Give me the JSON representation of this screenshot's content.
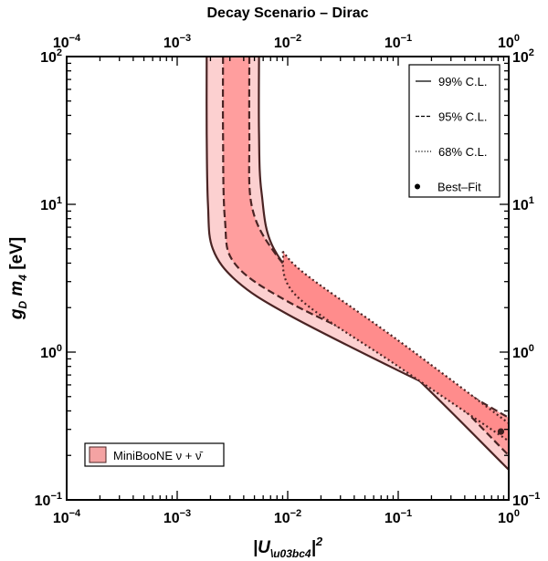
{
  "chart_data": {
    "type": "contour",
    "title": "Decay Scenario – Dirac",
    "xlabel": "|Uμ4|²",
    "ylabel": "gD m4 [eV]",
    "xscale": "log",
    "yscale": "log",
    "xlim": [
      0.0001,
      1
    ],
    "ylim": [
      0.1,
      100
    ],
    "x_ticks": [
      {
        "value": 0.0001,
        "base": "10",
        "exp": "−4"
      },
      {
        "value": 0.001,
        "base": "10",
        "exp": "−3"
      },
      {
        "value": 0.01,
        "base": "10",
        "exp": "−2"
      },
      {
        "value": 0.1,
        "base": "10",
        "exp": "−1"
      },
      {
        "value": 1,
        "base": "10",
        "exp": "0"
      }
    ],
    "y_ticks": [
      {
        "value": 0.1,
        "base": "10",
        "exp": "−1"
      },
      {
        "value": 1,
        "base": "10",
        "exp": "0"
      },
      {
        "value": 10,
        "base": "10",
        "exp": "1"
      },
      {
        "value": 100,
        "base": "10",
        "exp": "2"
      }
    ],
    "legend": {
      "placement": "top-right",
      "entries": [
        {
          "label": "99% C.L.",
          "style": "solid"
        },
        {
          "label": "95% C.L.",
          "style": "dashed"
        },
        {
          "label": "68% C.L.",
          "style": "dotted"
        },
        {
          "label": "Best–Fit",
          "style": "point"
        }
      ]
    },
    "dataset_legend": {
      "placement": "bottom-left",
      "label": "MiniBooNE ν + ν̄",
      "color": "#f4a3a3"
    },
    "regions": [
      {
        "level": "99% C.L.",
        "fill": "#fcd0d0",
        "upper": [
          [
            0.00185,
            100
          ],
          [
            0.00185,
            30
          ],
          [
            0.0019,
            10
          ],
          [
            0.0021,
            5
          ],
          [
            0.0035,
            3
          ],
          [
            0.01,
            1.8
          ],
          [
            0.1,
            0.75
          ],
          [
            1,
            0.33
          ]
        ],
        "lower": [
          [
            0.0055,
            100
          ],
          [
            0.0055,
            30
          ],
          [
            0.0058,
            12
          ],
          [
            0.0075,
            5
          ],
          [
            0.02,
            2.1
          ],
          [
            0.1,
            0.87
          ],
          [
            1,
            0.16
          ]
        ]
      },
      {
        "level": "95% C.L.",
        "fill": "#ff9e9e",
        "upper": [
          [
            0.0026,
            100
          ],
          [
            0.0026,
            30
          ],
          [
            0.0027,
            8
          ],
          [
            0.0033,
            4
          ],
          [
            0.01,
            2.2
          ],
          [
            0.1,
            0.95
          ],
          [
            1,
            0.36
          ]
        ],
        "lower": [
          [
            0.0045,
            100
          ],
          [
            0.0045,
            30
          ],
          [
            0.0047,
            10
          ],
          [
            0.0072,
            5
          ],
          [
            0.016,
            2.7
          ],
          [
            0.1,
            1.1
          ],
          [
            1,
            0.2
          ]
        ]
      },
      {
        "level": "68% C.L.",
        "fill": "#ff8c8c",
        "upper": [
          [
            0.009,
            4.8
          ],
          [
            0.015,
            3.3
          ],
          [
            0.1,
            1.2
          ],
          [
            1,
            0.33
          ]
        ],
        "lower": [
          [
            0.009,
            4.8
          ],
          [
            0.012,
            2.4
          ],
          [
            0.1,
            0.8
          ],
          [
            1,
            0.25
          ]
        ]
      }
    ],
    "best_fit": {
      "x": 0.85,
      "y": 0.29
    }
  }
}
